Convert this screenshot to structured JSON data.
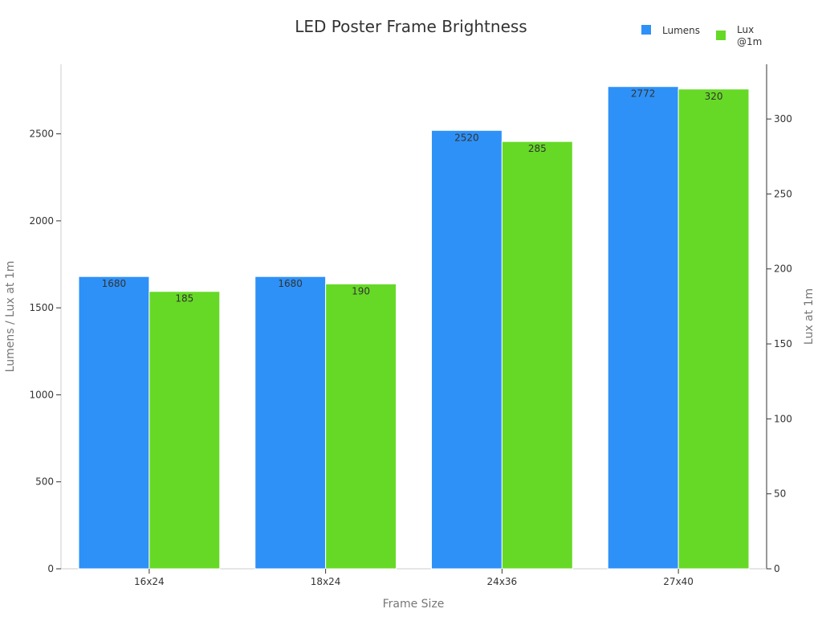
{
  "chart_data": {
    "type": "bar",
    "title": "LED Poster Frame Brightness",
    "xlabel": "Frame Size",
    "ylabel": "Lumens / Lux at 1m",
    "y2label": "Lux at 1m",
    "categories": [
      "16x24",
      "18x24",
      "24x36",
      "27x40"
    ],
    "series": [
      {
        "name": "Lumens",
        "values": [
          1680,
          1680,
          2520,
          2772
        ],
        "axis": "left",
        "color": "#2e91f7"
      },
      {
        "name": "Lux @1m",
        "values": [
          185,
          190,
          285,
          320
        ],
        "axis": "right",
        "color": "#66d926"
      }
    ],
    "legend_label_lines": {
      "Lumens": [
        "Lumens"
      ],
      "Lux @1m": [
        "Lux",
        "@1m"
      ]
    },
    "ylim": [
      0,
      2900
    ],
    "y2lim": [
      0,
      336.5
    ],
    "yticks": [
      0,
      500,
      1000,
      1500,
      2000,
      2500
    ],
    "y2ticks": [
      0,
      50,
      100,
      150,
      200,
      250,
      300
    ],
    "grid": false,
    "legend_position": "top-right"
  }
}
